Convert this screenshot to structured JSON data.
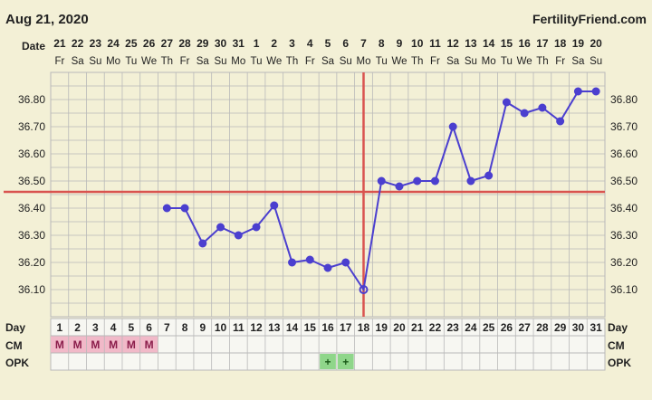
{
  "header": {
    "date": "Aug 21, 2020",
    "brand": "FertilityFriend.com"
  },
  "rows": {
    "date_label": "Date",
    "day_label": "Day",
    "cm_label": "CM",
    "opk_label": "OPK"
  },
  "chart_data": {
    "type": "line",
    "title": "",
    "xlabel": "",
    "ylabel": "",
    "ylim": [
      36.0,
      36.9
    ],
    "yticks": [
      36.1,
      36.2,
      36.3,
      36.4,
      36.5,
      36.6,
      36.7,
      36.8
    ],
    "grid": true,
    "dates": [
      "21",
      "22",
      "23",
      "24",
      "25",
      "26",
      "27",
      "28",
      "29",
      "30",
      "31",
      "1",
      "2",
      "3",
      "4",
      "5",
      "6",
      "7",
      "8",
      "9",
      "10",
      "11",
      "12",
      "13",
      "14",
      "15",
      "16",
      "17",
      "18",
      "19",
      "20"
    ],
    "weekdays": [
      "Fr",
      "Sa",
      "Su",
      "Mo",
      "Tu",
      "We",
      "Th",
      "Fr",
      "Sa",
      "Su",
      "Mo",
      "Tu",
      "We",
      "Th",
      "Fr",
      "Sa",
      "Su",
      "Mo",
      "Tu",
      "We",
      "Th",
      "Fr",
      "Sa",
      "Su",
      "Mo",
      "Tu",
      "We",
      "Th",
      "Fr",
      "Sa",
      "Su"
    ],
    "cycle_days": [
      1,
      2,
      3,
      4,
      5,
      6,
      7,
      8,
      9,
      10,
      11,
      12,
      13,
      14,
      15,
      16,
      17,
      18,
      19,
      20,
      21,
      22,
      23,
      24,
      25,
      26,
      27,
      28,
      29,
      30,
      31
    ],
    "series": [
      {
        "values": [
          null,
          null,
          null,
          null,
          null,
          null,
          36.4,
          36.4,
          36.27,
          36.33,
          36.3,
          36.33,
          36.41,
          36.2,
          36.21,
          36.18,
          36.2,
          36.1,
          36.5,
          36.48,
          36.5,
          36.5,
          36.7,
          36.5,
          36.52,
          36.79,
          36.75,
          36.77,
          36.72,
          36.83,
          36.83
        ]
      }
    ],
    "coverline": 36.46,
    "ovulation_day": 18,
    "cervical_mucus": [
      "M",
      "M",
      "M",
      "M",
      "M",
      "M",
      "",
      "",
      "",
      "",
      "",
      "",
      "",
      "",
      "",
      "",
      "",
      "",
      "",
      "",
      "",
      "",
      "",
      "",
      "",
      "",
      "",
      "",
      "",
      "",
      ""
    ],
    "opk": [
      "",
      "",
      "",
      "",
      "",
      "",
      "",
      "",
      "",
      "",
      "",
      "",
      "",
      "",
      "",
      "+",
      "+",
      "",
      "",
      "",
      "",
      "",
      "",
      "",
      "",
      "",
      "",
      "",
      "",
      "",
      ""
    ],
    "colors": {
      "background": "#f3f0d6",
      "grid": "#b9b9b9",
      "temp_line": "#4b3fcf",
      "coverline": "#d9534f",
      "ovulation": "#d9534f",
      "cm_fill": "#f1b9c8",
      "cm_text": "#8a1c4a",
      "opk_fill": "#8fd68a",
      "opk_text": "#1a5a18"
    }
  }
}
